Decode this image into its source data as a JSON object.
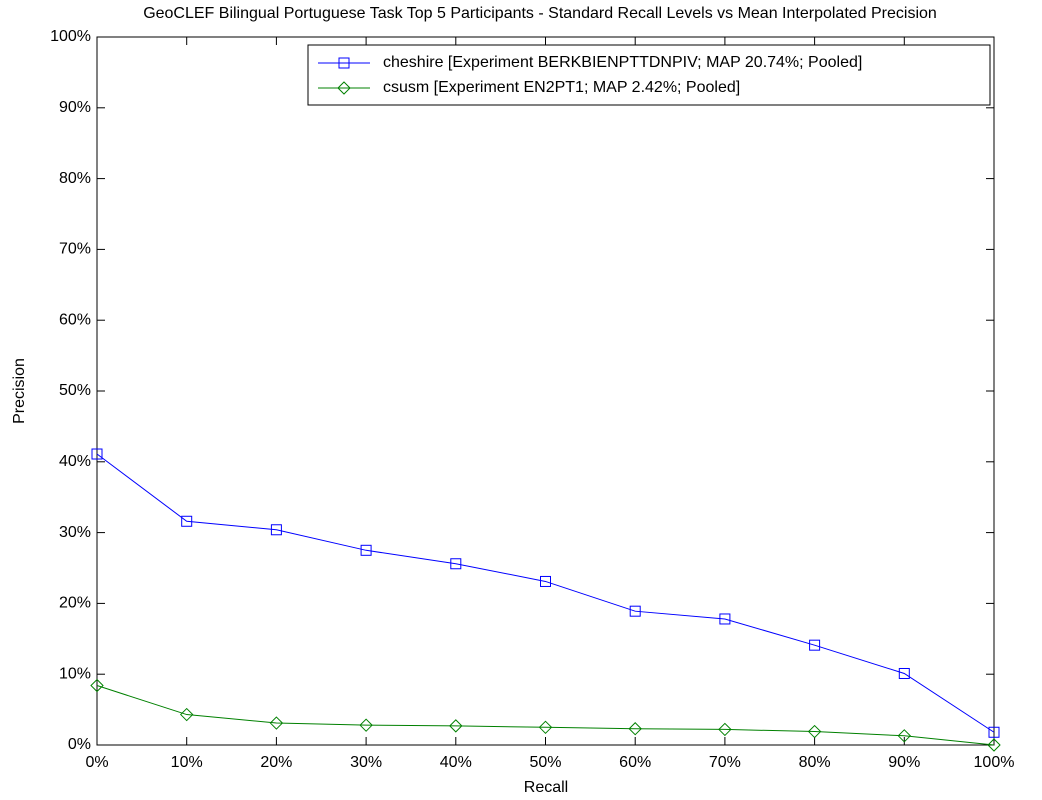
{
  "chart_data": {
    "type": "line",
    "title": "GeoCLEF Bilingual Portuguese Task Top 5 Participants - Standard Recall Levels vs Mean Interpolated Precision",
    "x_label": "Recall",
    "y_label": "Precision",
    "x": [
      0,
      10,
      20,
      30,
      40,
      50,
      60,
      70,
      80,
      90,
      100
    ],
    "series": [
      {
        "name": "cheshire [Experiment BERKBIENPTTDNPIV; MAP 20.74%; Pooled]",
        "color": "#0000ff",
        "marker": "square",
        "values": [
          41.1,
          31.6,
          30.4,
          27.5,
          25.6,
          23.1,
          18.9,
          17.8,
          14.1,
          10.1,
          1.8
        ]
      },
      {
        "name": "csusm [Experiment EN2PT1; MAP 2.42%; Pooled]",
        "color": "#008000",
        "marker": "diamond",
        "values": [
          8.4,
          4.3,
          3.1,
          2.8,
          2.7,
          2.5,
          2.3,
          2.2,
          1.9,
          1.3,
          0.0
        ]
      }
    ],
    "xlim": [
      0,
      100
    ],
    "xticks": [
      {
        "value": 0,
        "label": "0%"
      },
      {
        "value": 10,
        "label": "10%"
      },
      {
        "value": 20,
        "label": "20%"
      },
      {
        "value": 30,
        "label": "30%"
      },
      {
        "value": 40,
        "label": "40%"
      },
      {
        "value": 50,
        "label": "50%"
      },
      {
        "value": 60,
        "label": "60%"
      },
      {
        "value": 70,
        "label": "70%"
      },
      {
        "value": 80,
        "label": "80%"
      },
      {
        "value": 90,
        "label": "90%"
      },
      {
        "value": 100,
        "label": "100%"
      }
    ],
    "ylim": [
      0,
      100
    ],
    "yticks": [
      {
        "value": 0,
        "label": "0%"
      },
      {
        "value": 10,
        "label": "10%"
      },
      {
        "value": 20,
        "label": "20%"
      },
      {
        "value": 30,
        "label": "30%"
      },
      {
        "value": 40,
        "label": "40%"
      },
      {
        "value": 50,
        "label": "50%"
      },
      {
        "value": 60,
        "label": "60%"
      },
      {
        "value": 70,
        "label": "70%"
      },
      {
        "value": 80,
        "label": "80%"
      },
      {
        "value": 90,
        "label": "90%"
      },
      {
        "value": 100,
        "label": "100%"
      }
    ],
    "grid": false,
    "legend": "upper right"
  }
}
